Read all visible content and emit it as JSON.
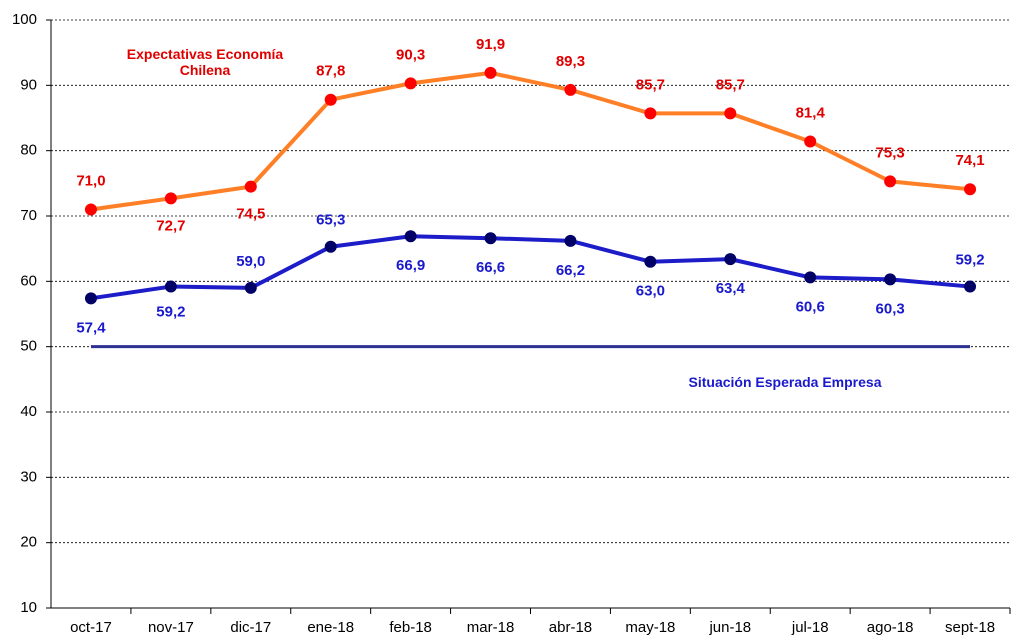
{
  "chart_data": {
    "type": "line",
    "categories": [
      "oct-17",
      "nov-17",
      "dic-17",
      "ene-18",
      "feb-18",
      "mar-18",
      "abr-18",
      "may-18",
      "jun-18",
      "jul-18",
      "ago-18",
      "sept-18"
    ],
    "series": [
      {
        "name": "Expectativas Economía Chilena",
        "color": "#ff7f27",
        "marker_color": "#ff0000",
        "label_color": "#e00000",
        "values": [
          71.0,
          72.7,
          74.5,
          87.8,
          90.3,
          91.9,
          89.3,
          85.7,
          85.7,
          81.4,
          75.3,
          74.1
        ],
        "value_labels": [
          "71,0",
          "72,7",
          "74,5",
          "87,8",
          "90,3",
          "91,9",
          "89,3",
          "85,7",
          "85,7",
          "81,4",
          "75,3",
          "74,1"
        ]
      },
      {
        "name": "Situación Esperada Empresa",
        "color": "#1c1cc8",
        "marker_color": "#000066",
        "label_color": "#1a1acc",
        "values": [
          57.4,
          59.2,
          59.0,
          65.3,
          66.9,
          66.6,
          66.2,
          63.0,
          63.4,
          60.6,
          60.3,
          59.2
        ],
        "value_labels": [
          "57,4",
          "59,2",
          "59,0",
          "65,3",
          "66,9",
          "66,6",
          "66,2",
          "63,0",
          "63,4",
          "60,6",
          "60,3",
          "59,2"
        ]
      }
    ],
    "reference_line": {
      "value": 50,
      "color": "#2e3192"
    },
    "ylim": [
      10,
      100
    ],
    "yticks": [
      10,
      20,
      30,
      40,
      50,
      60,
      70,
      80,
      90,
      100
    ],
    "grid": true
  }
}
